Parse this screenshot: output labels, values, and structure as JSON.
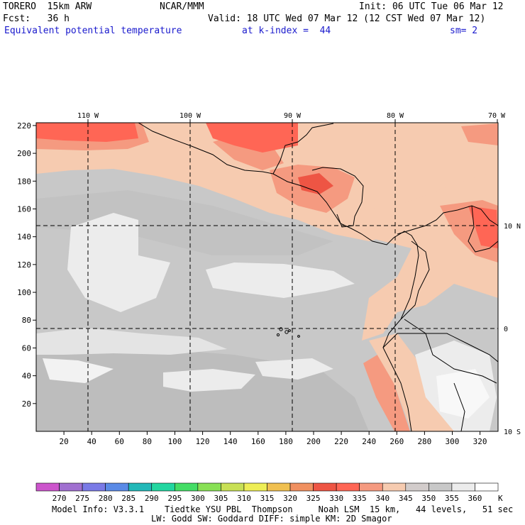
{
  "header": {
    "model": "TORERO  15km ARW",
    "center": "NCAR/MMM",
    "init": "Init: 06 UTC Tue 06 Mar 12",
    "fcst": "Fcst:   36 h",
    "valid": "Valid: 18 UTC Wed 07 Mar 12 (12 CST Wed 07 Mar 12)",
    "field": "Equivalent potential temperature",
    "level": "at k-index =  44",
    "smooth": "sm= 2"
  },
  "map": {
    "lon_labels": [
      "110 W",
      "100 W",
      "90 W",
      "80 W",
      "70 W"
    ],
    "lat_labels": [
      "10 N",
      "0",
      "10 S"
    ],
    "y_ticks": [
      "20",
      "40",
      "60",
      "80",
      "100",
      "120",
      "140",
      "160",
      "180",
      "200",
      "220"
    ],
    "x_ticks": [
      "20",
      "40",
      "60",
      "80",
      "100",
      "120",
      "140",
      "160",
      "180",
      "200",
      "220",
      "240",
      "260",
      "280",
      "300",
      "320"
    ]
  },
  "colorbar": {
    "labels": [
      "270",
      "275",
      "280",
      "285",
      "290",
      "295",
      "300",
      "305",
      "310",
      "315",
      "320",
      "325",
      "330",
      "335",
      "340",
      "345",
      "350",
      "355",
      "360"
    ],
    "unit": "K",
    "colors": [
      "#cc55cc",
      "#a070d0",
      "#7a7ae6",
      "#5a8ae6",
      "#22b8b8",
      "#22d6a0",
      "#44dd66",
      "#88e055",
      "#c8e055",
      "#eeee55",
      "#f0c050",
      "#f09060",
      "#ee5544",
      "#ff6655",
      "#f59a80",
      "#f6cbb0",
      "#d2cccb",
      "#c8c8c8",
      "#ececec",
      "#ffffff"
    ]
  },
  "footer": {
    "line1": "Model Info: V3.3.1    Tiedtke YSU PBL  Thompson     Noah LSM  15 km,   44 levels,   51 sec",
    "line2": "LW: Godd SW: Goddard DIFF: simple KM: 2D Smagor"
  }
}
